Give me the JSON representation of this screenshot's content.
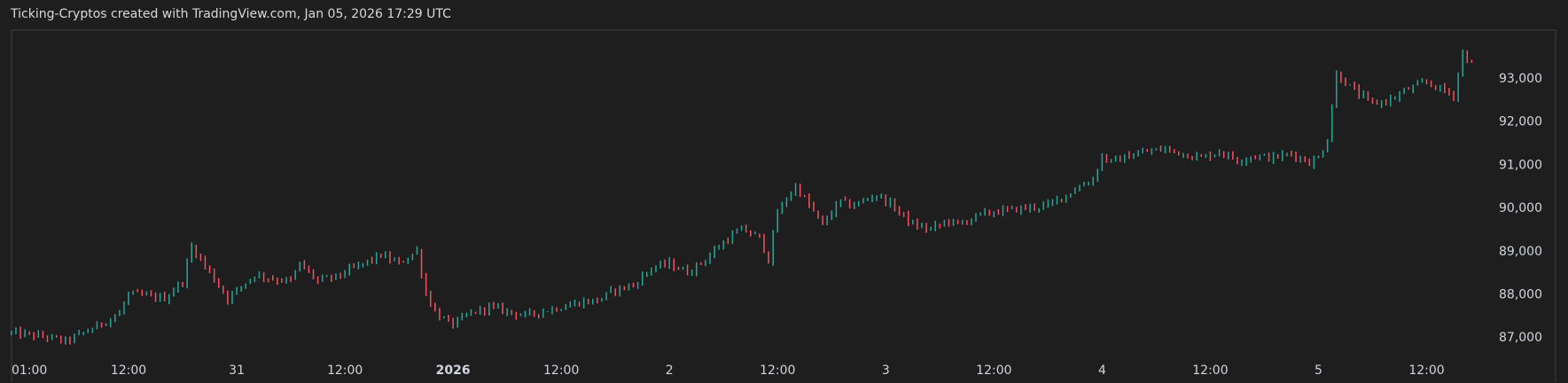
{
  "header": {
    "title": "Ticking-Cryptos created with TradingView.com, Jan 05, 2026 17:29 UTC"
  },
  "colors": {
    "background": "#1e1e1e",
    "up": "#26a69a",
    "down": "#ef5361",
    "text": "#d1d4dc",
    "border": "#2e2e2e"
  },
  "chart_data": {
    "type": "candlestick",
    "title": "",
    "xlabel": "",
    "ylabel": "",
    "interval": "30m",
    "x_ticks": [
      {
        "label": "01:00",
        "hour": 1,
        "bold": false
      },
      {
        "label": "12:00",
        "hour": 12,
        "bold": false
      },
      {
        "label": "31",
        "hour": 24,
        "bold": false
      },
      {
        "label": "12:00",
        "hour": 36,
        "bold": false
      },
      {
        "label": "2026",
        "hour": 48,
        "bold": true
      },
      {
        "label": "12:00",
        "hour": 60,
        "bold": false
      },
      {
        "label": "2",
        "hour": 72,
        "bold": false
      },
      {
        "label": "12:00",
        "hour": 84,
        "bold": false
      },
      {
        "label": "3",
        "hour": 96,
        "bold": false
      },
      {
        "label": "12:00",
        "hour": 108,
        "bold": false
      },
      {
        "label": "4",
        "hour": 120,
        "bold": false
      },
      {
        "label": "12:00",
        "hour": 132,
        "bold": false
      },
      {
        "label": "5",
        "hour": 144,
        "bold": false
      },
      {
        "label": "12:00",
        "hour": 156,
        "bold": false
      }
    ],
    "y_ticks": [
      "93,000",
      "92,000",
      "91,000",
      "90,000",
      "89,000",
      "88,000",
      "87,000"
    ],
    "y_tick_values": [
      93000,
      92000,
      91000,
      90000,
      89000,
      88000,
      87000
    ],
    "ylim": [
      86700,
      94100
    ],
    "price_path": {
      "hours": [
        -1,
        3,
        5,
        8,
        11,
        12,
        16,
        18,
        19,
        21,
        22,
        23,
        26,
        28,
        30,
        31,
        33,
        35,
        37,
        40,
        42,
        44,
        45,
        46,
        47,
        48,
        50,
        52,
        54,
        56,
        58,
        60,
        62,
        64,
        66,
        68,
        70,
        72,
        74,
        76,
        78,
        80,
        82,
        83,
        84,
        86,
        88,
        89,
        90,
        91,
        92,
        93,
        95,
        97,
        99,
        101,
        103,
        104,
        106,
        108,
        110,
        112,
        114,
        116,
        118,
        119,
        120,
        121,
        123,
        125,
        127,
        129,
        131,
        133,
        135,
        137,
        139,
        141,
        143,
        144,
        145,
        146,
        148,
        150,
        152,
        154,
        156,
        158,
        159,
        160,
        161
      ],
      "close": [
        87100,
        87000,
        86900,
        87200,
        87550,
        88000,
        87900,
        88300,
        89100,
        88500,
        88200,
        87900,
        88450,
        88350,
        88300,
        88700,
        88300,
        88400,
        88600,
        88900,
        88700,
        89000,
        88000,
        87600,
        87400,
        87300,
        87550,
        87700,
        87600,
        87500,
        87600,
        87700,
        87800,
        87850,
        88100,
        88200,
        88600,
        88700,
        88500,
        88800,
        89200,
        89500,
        89300,
        88800,
        89900,
        90500,
        89900,
        89600,
        89900,
        90150,
        90050,
        90100,
        90300,
        90000,
        89600,
        89500,
        89700,
        89600,
        89800,
        89900,
        89950,
        90000,
        90050,
        90300,
        90550,
        90650,
        91200,
        91050,
        91200,
        91300,
        91350,
        91250,
        91150,
        91300,
        91100,
        91200,
        91150,
        91250,
        91050,
        91150,
        91600,
        93100,
        92700,
        92400,
        92500,
        92750,
        92900,
        92700,
        92600,
        93600,
        93300
      ]
    }
  }
}
